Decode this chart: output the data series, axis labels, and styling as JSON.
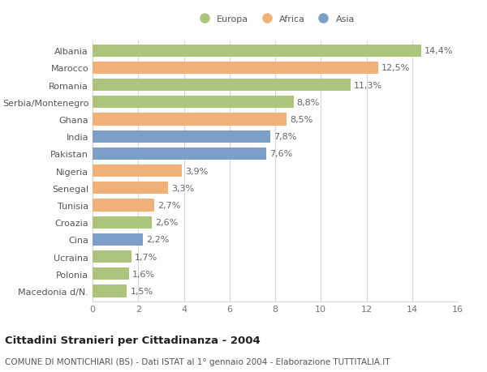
{
  "countries": [
    "Albania",
    "Marocco",
    "Romania",
    "Serbia/Montenegro",
    "Ghana",
    "India",
    "Pakistan",
    "Nigeria",
    "Senegal",
    "Tunisia",
    "Croazia",
    "Cina",
    "Ucraina",
    "Polonia",
    "Macedonia d/N."
  ],
  "values": [
    14.4,
    12.5,
    11.3,
    8.8,
    8.5,
    7.8,
    7.6,
    3.9,
    3.3,
    2.7,
    2.6,
    2.2,
    1.7,
    1.6,
    1.5
  ],
  "labels": [
    "14,4%",
    "12,5%",
    "11,3%",
    "8,8%",
    "8,5%",
    "7,8%",
    "7,6%",
    "3,9%",
    "3,3%",
    "2,7%",
    "2,6%",
    "2,2%",
    "1,7%",
    "1,6%",
    "1,5%"
  ],
  "continents": [
    "Europa",
    "Africa",
    "Europa",
    "Europa",
    "Africa",
    "Asia",
    "Asia",
    "Africa",
    "Africa",
    "Africa",
    "Europa",
    "Asia",
    "Europa",
    "Europa",
    "Europa"
  ],
  "colors": {
    "Europa": "#adc47d",
    "Africa": "#f0b07a",
    "Asia": "#7b9fc7"
  },
  "xlim": [
    0,
    16
  ],
  "xticks": [
    0,
    2,
    4,
    6,
    8,
    10,
    12,
    14,
    16
  ],
  "title_main": "Cittadini Stranieri per Cittadinanza - 2004",
  "title_sub": "COMUNE DI MONTICHIARI (BS) - Dati ISTAT al 1° gennaio 2004 - Elaborazione TUTTITALIA.IT",
  "background_color": "#ffffff",
  "grid_color": "#d8d8d8",
  "bar_height": 0.72,
  "label_fontsize": 8,
  "tick_fontsize": 8,
  "title_fontsize": 9.5,
  "subtitle_fontsize": 7.5
}
